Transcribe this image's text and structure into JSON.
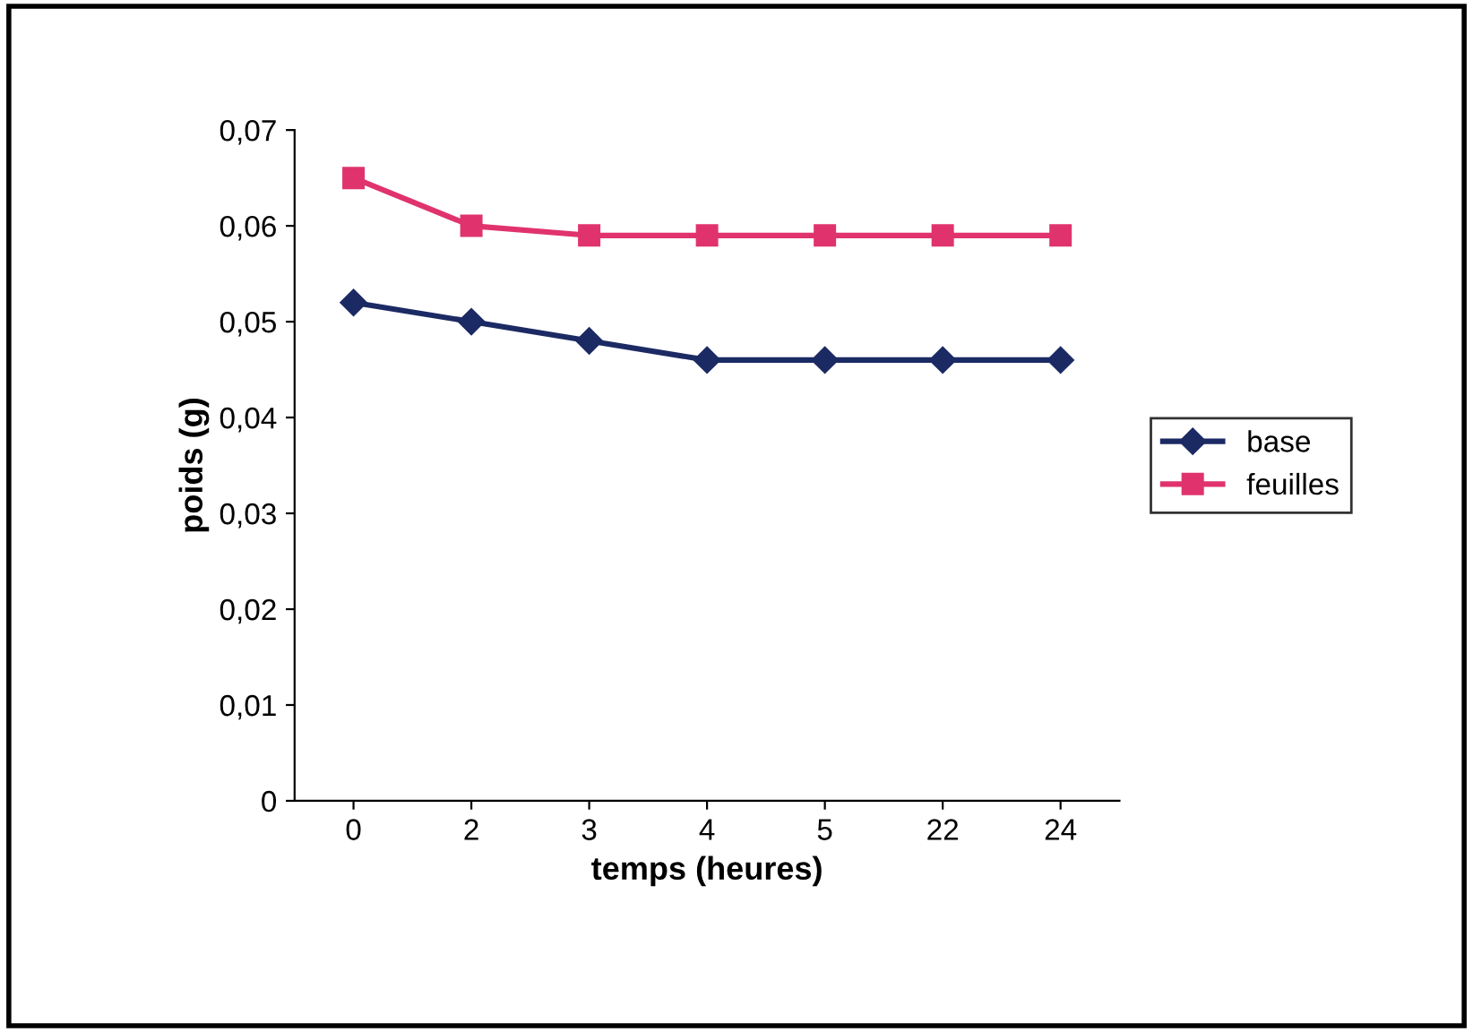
{
  "chart_data": {
    "type": "line",
    "xlabel": "temps (heures)",
    "ylabel": "poids (g)",
    "categories": [
      "0",
      "2",
      "3",
      "4",
      "5",
      "22",
      "24"
    ],
    "series": [
      {
        "name": "base",
        "color": "#1c2a64",
        "marker": "diamond",
        "values": [
          0.052,
          0.05,
          0.048,
          0.046,
          0.046,
          0.046,
          0.046
        ]
      },
      {
        "name": "feuilles",
        "color": "#e0336e",
        "marker": "square",
        "values": [
          0.065,
          0.06,
          0.059,
          0.059,
          0.059,
          0.059,
          0.059
        ]
      }
    ],
    "ylim": [
      0,
      0.07
    ],
    "yticks": [
      0,
      {
        "value": 0.01,
        "label": "0,01"
      },
      {
        "value": 0.02,
        "label": "0,02"
      },
      {
        "value": 0.03,
        "label": "0,03"
      },
      {
        "value": 0.04,
        "label": "0,04"
      },
      {
        "value": 0.05,
        "label": "0,05"
      },
      {
        "value": 0.06,
        "label": "0,06"
      },
      {
        "value": 0.07,
        "label": "0,07"
      }
    ],
    "grid": false,
    "legend": "right",
    "line_style": "solid"
  }
}
